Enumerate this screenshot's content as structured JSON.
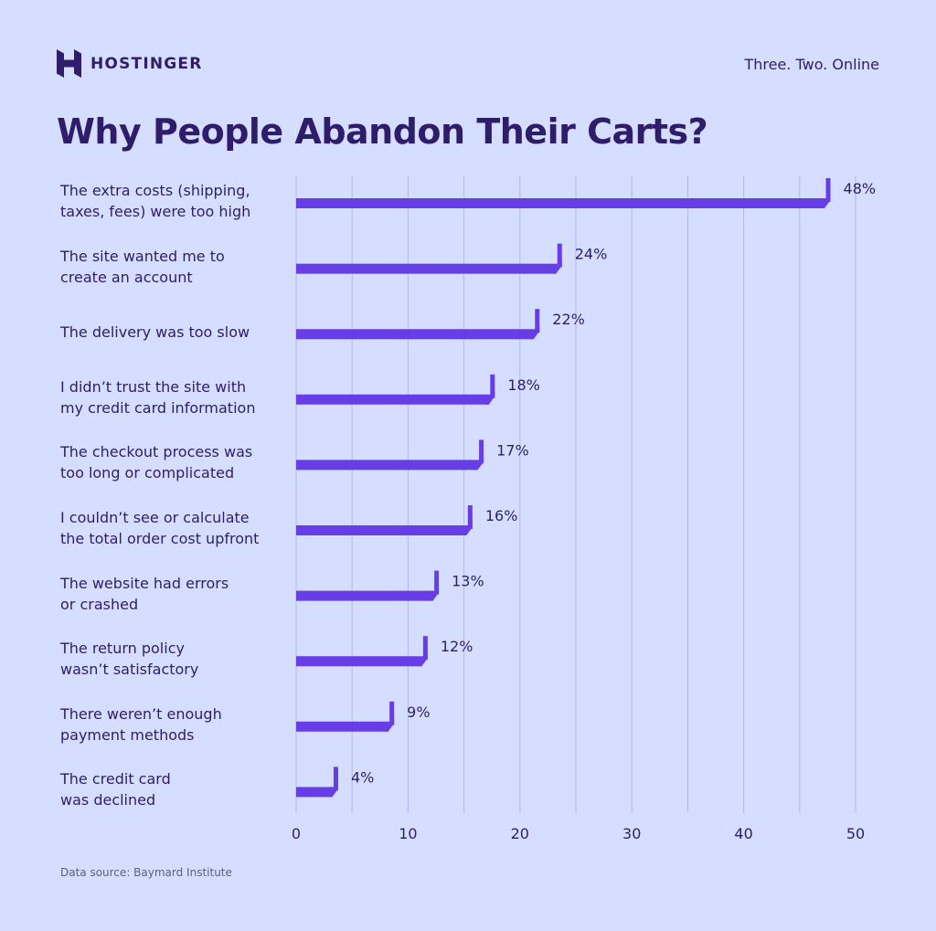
{
  "brand": {
    "name": "HOSTINGER",
    "logo_icon": "hostinger-h-icon",
    "tagline": "Three. Two. Online"
  },
  "colors": {
    "background": "#d5deff",
    "bar": "#673de6",
    "text": "#2f1c6a",
    "grid": "#b0b6f0"
  },
  "footer": {
    "source": "Data source: Baymard Institute"
  },
  "chart_data": {
    "type": "bar",
    "orientation": "horizontal",
    "title": "Why People Abandon Their Carts?",
    "xlabel": "",
    "ylabel": "",
    "xlim": [
      0,
      50
    ],
    "xticks": [
      0,
      10,
      20,
      30,
      40,
      50
    ],
    "grid": true,
    "categories": [
      "The extra costs (shipping,\ntaxes, fees) were too high",
      "The site wanted me to\ncreate an account",
      "The delivery was too slow",
      "I didn’t trust the site with\nmy credit card information",
      "The checkout process was\ntoo long or complicated",
      "I couldn’t see or calculate\nthe total order cost upfront",
      "The website had errors\nor crashed",
      "The return policy\nwasn’t satisfactory",
      "There weren’t enough\npayment methods",
      "The credit card\nwas declined"
    ],
    "values": [
      48,
      24,
      22,
      18,
      17,
      16,
      13,
      12,
      9,
      4
    ],
    "value_labels": [
      "48%",
      "24%",
      "22%",
      "18%",
      "17%",
      "16%",
      "13%",
      "12%",
      "9%",
      "4%"
    ]
  }
}
